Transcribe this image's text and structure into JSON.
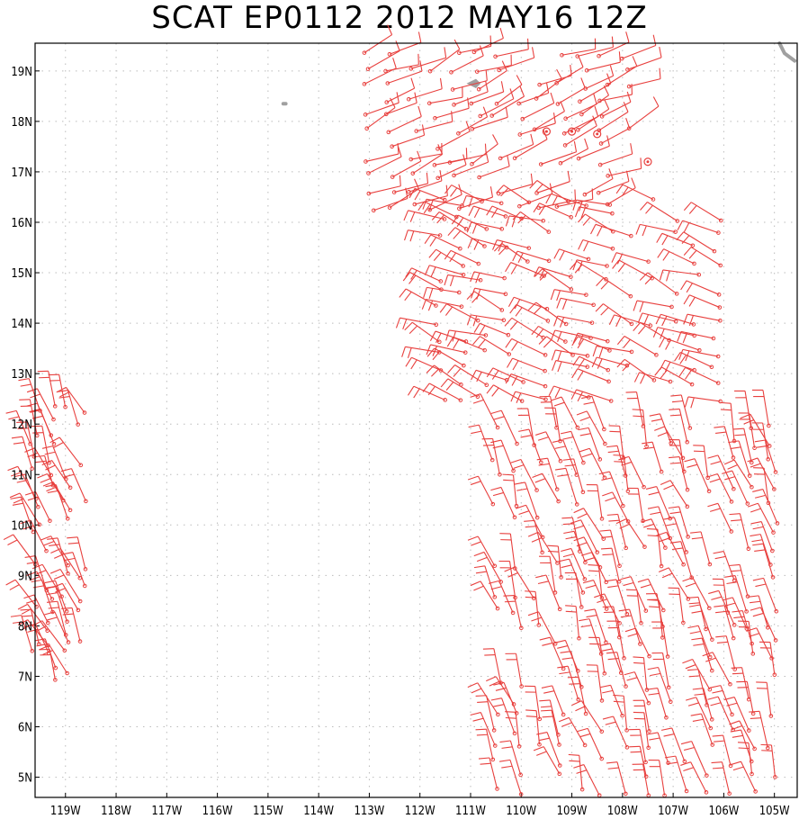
{
  "title": "SCAT EP0112 2012 MAY16 12Z",
  "colors": {
    "wind": "#e8403e",
    "land": "#a0a0a0",
    "grid": "#bbbbbb",
    "frame": "#000000"
  },
  "axes": {
    "lon_range": [
      -119.6,
      -104.55
    ],
    "lat_range": [
      4.6,
      19.55
    ],
    "lat_labels": [
      "19N",
      "18N",
      "17N",
      "16N",
      "15N",
      "14N",
      "13N",
      "12N",
      "11N",
      "10N",
      "9N",
      "8N",
      "7N",
      "6N",
      "5N"
    ],
    "lat_values": [
      19,
      18,
      17,
      16,
      15,
      14,
      13,
      12,
      11,
      10,
      9,
      8,
      7,
      6,
      5
    ],
    "lon_labels": [
      "119W",
      "118W",
      "117W",
      "116W",
      "115W",
      "114W",
      "113W",
      "112W",
      "111W",
      "110W",
      "109W",
      "108W",
      "107W",
      "106W",
      "105W"
    ],
    "lon_values": [
      -119,
      -118,
      -117,
      -116,
      -115,
      -114,
      -113,
      -112,
      -111,
      -110,
      -109,
      -108,
      -107,
      -106,
      -105
    ],
    "grid": "dotted"
  },
  "land": [
    {
      "name": "island",
      "points": [
        [
          -110.9,
          18.8
        ],
        [
          -110.85,
          18.75
        ],
        [
          -110.9,
          18.7
        ],
        [
          -111.0,
          18.75
        ]
      ]
    },
    {
      "name": "islet",
      "points": [
        [
          -114.7,
          18.35
        ],
        [
          -114.65,
          18.35
        ]
      ]
    },
    {
      "name": "coast",
      "points": [
        [
          -104.9,
          19.55
        ],
        [
          -104.8,
          19.35
        ],
        [
          -104.6,
          19.2
        ]
      ]
    }
  ],
  "chart_data": {
    "type": "wind-barbs",
    "swaths": [
      {
        "name": "west",
        "lon_range": [
          -119.6,
          -118.5
        ],
        "lat_range": [
          7.0,
          12.3
        ],
        "dir": [
          -0.45,
          -1
        ],
        "speed": 15,
        "spacing": 0.22
      },
      {
        "name": "north",
        "lon_range": [
          -113.0,
          -107.6
        ],
        "lat_range": [
          16.3,
          19.5
        ],
        "dir": [
          1,
          -0.45
        ],
        "speed": 10,
        "spacing": 0.3
      },
      {
        "name": "middle",
        "lon_range": [
          -111.6,
          -106.0
        ],
        "lat_range": [
          12.5,
          16.5
        ],
        "dir": [
          -1,
          -0.4
        ],
        "speed": 15,
        "spacing": 0.3
      },
      {
        "name": "south",
        "lon_range": [
          -110.5,
          -104.8
        ],
        "lat_range": [
          4.7,
          12.2
        ],
        "dir": [
          -0.35,
          -1
        ],
        "speed": 15,
        "spacing": 0.3
      }
    ],
    "rain_flags": [
      [
        -109.5,
        17.8
      ],
      [
        -109.0,
        17.8
      ],
      [
        -108.5,
        17.75
      ],
      [
        -107.5,
        17.2
      ]
    ]
  }
}
